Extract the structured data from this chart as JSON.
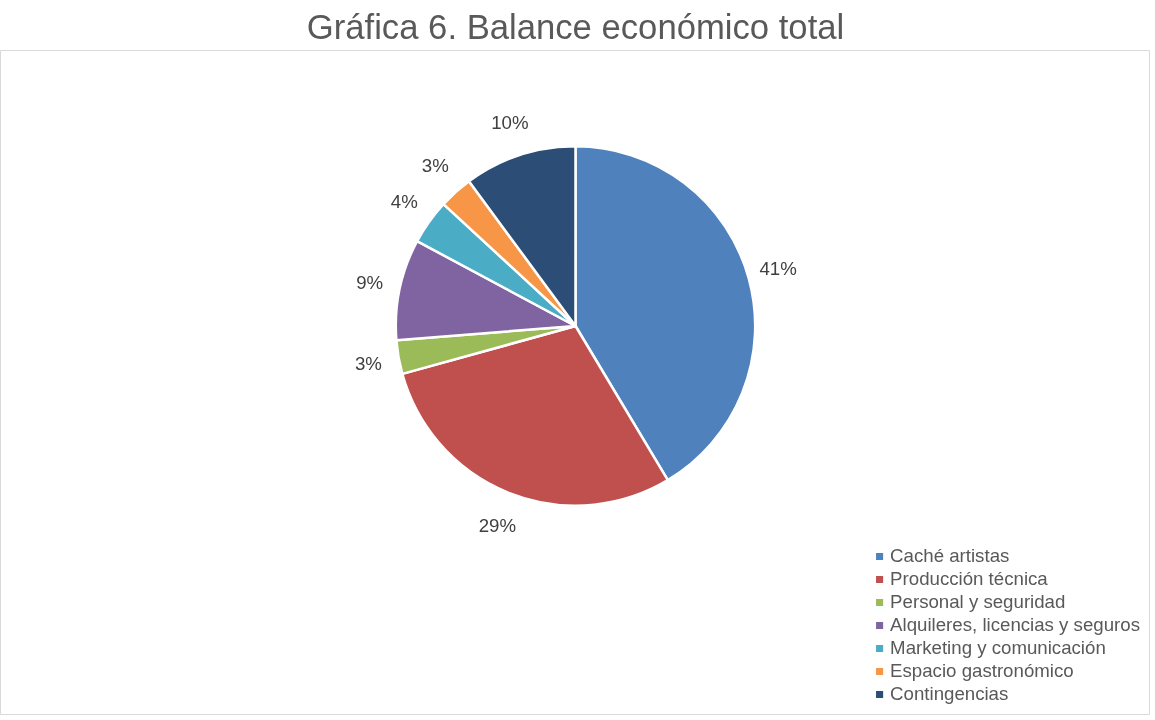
{
  "chart_data": {
    "type": "pie",
    "title": "Gráfica 6. Balance económico total",
    "categories": [
      "Caché artistas",
      "Producción técnica",
      "Personal y seguridad",
      "Alquileres, licencias y seguros",
      "Marketing y comunicación",
      "Espacio gastronómico",
      "Contingencias"
    ],
    "values": [
      41,
      29,
      3,
      9,
      4,
      3,
      10
    ],
    "colors": [
      "#4f81bd",
      "#c0504d",
      "#9bbb59",
      "#8064a2",
      "#4bacc6",
      "#f79646",
      "#2c4d75"
    ],
    "value_labels": [
      "41%",
      "29%",
      "3%",
      "9%",
      "4%",
      "3%",
      "10%"
    ],
    "legend": "bottom right"
  }
}
